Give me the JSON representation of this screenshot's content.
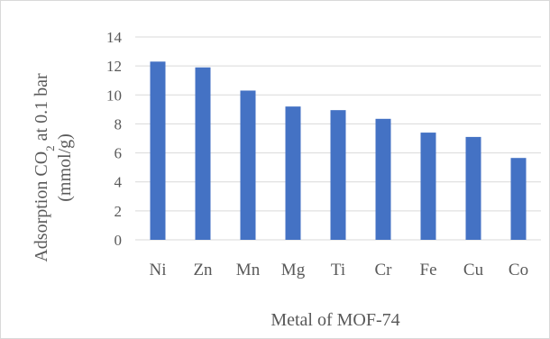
{
  "chart_data": {
    "type": "bar",
    "categories": [
      "Ni",
      "Zn",
      "Mn",
      "Mg",
      "Ti",
      "Cr",
      "Fe",
      "Cu",
      "Co"
    ],
    "values": [
      12.3,
      11.9,
      10.3,
      9.2,
      8.95,
      8.35,
      7.4,
      7.1,
      5.65
    ],
    "title": "",
    "xlabel": "Metal of MOF-74",
    "ylabel_line1_prefix": "Adsorption CO",
    "ylabel_line1_subscript": "2",
    "ylabel_line1_suffix": " at 0.1 bar",
    "ylabel_line2": "(mmol/g)",
    "ylim": [
      0,
      14
    ],
    "y_ticks": [
      "0",
      "2",
      "4",
      "6",
      "8",
      "10",
      "12",
      "14"
    ],
    "grid": true,
    "legend": "none",
    "bar_color": "#4472c4",
    "grid_color": "#d9d9d9"
  }
}
